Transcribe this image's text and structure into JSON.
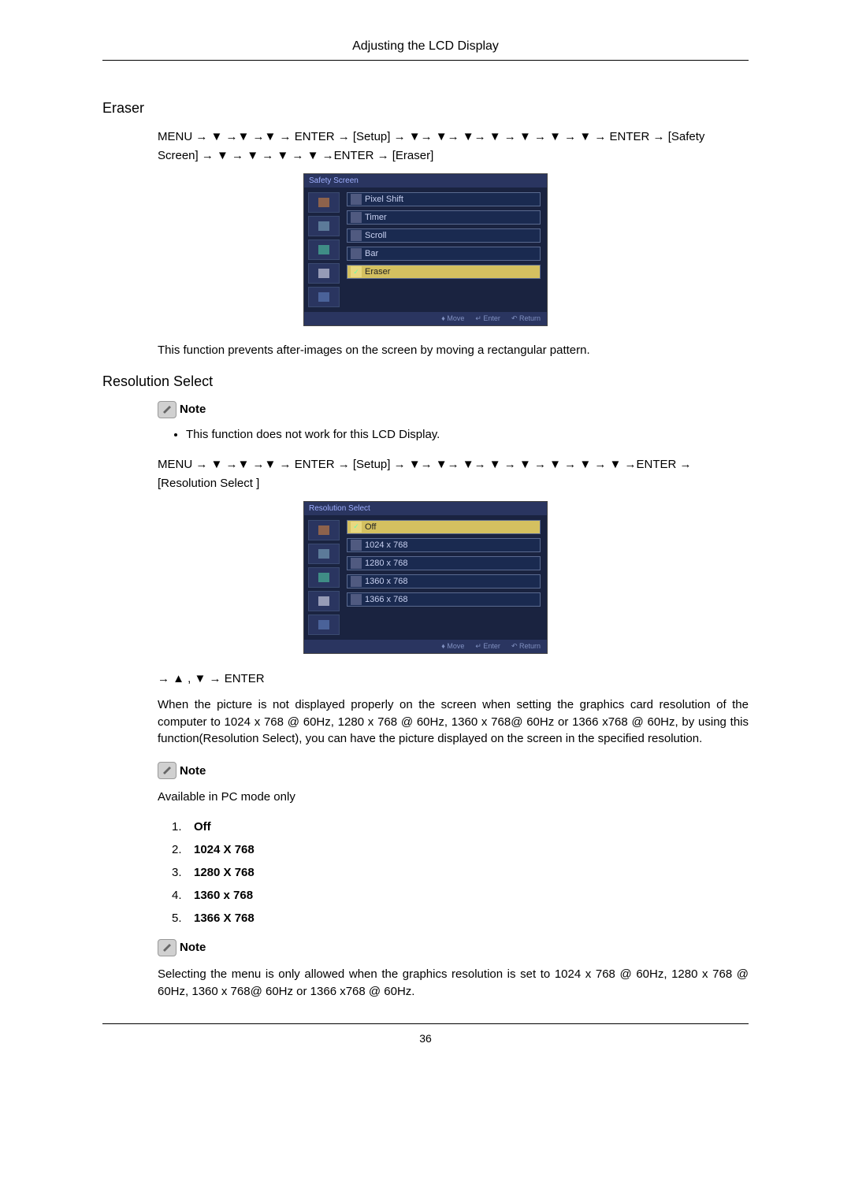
{
  "header": {
    "title": "Adjusting the LCD Display"
  },
  "sections": {
    "eraser": {
      "title": "Eraser",
      "navpath": "MENU → ▼ →▼ →▼ → ENTER → [Setup] → ▼→ ▼→ ▼→ ▼ → ▼ → ▼ → ▼ → ENTER → [Safety Screen] → ▼ → ▼ → ▼ → ▼ →ENTER → [Eraser]",
      "body": "This function prevents after-images on the screen by moving a rectangular pattern."
    },
    "resolution": {
      "title": "Resolution Select",
      "note1": "Note",
      "bullet": "This function does not work for this LCD Display.",
      "navpath": "MENU → ▼ →▼ →▼ → ENTER → [Setup] → ▼→ ▼→ ▼→ ▼ → ▼ → ▼ → ▼ → ▼ →ENTER → [Resolution Select ]",
      "navpath2": "→ ▲ , ▼ → ENTER",
      "body": "When the picture is not displayed properly on the screen when setting the graphics card resolution of the computer to 1024 x 768 @ 60Hz, 1280 x 768 @ 60Hz, 1360 x 768@ 60Hz or 1366 x768 @ 60Hz, by using this function(Resolution Select), you can have the picture displayed on the screen in the specified resolution.",
      "note2": "Note",
      "available": "Available in PC mode only",
      "list": [
        "Off",
        "1024 X 768",
        "1280 X 768",
        "1360 x 768",
        "1366 X 768"
      ],
      "note3": "Note",
      "body2": "Selecting the menu is only allowed when the graphics resolution is set to 1024 x 768 @ 60Hz, 1280 x 768 @ 60Hz, 1360 x 768@ 60Hz or 1366 x768 @ 60Hz."
    }
  },
  "osd1": {
    "title": "Safety Screen",
    "items": [
      "Pixel Shift",
      "Timer",
      "Scroll",
      "Bar",
      "Eraser"
    ],
    "activeIndex": 4,
    "sidebar_colors": [
      "#d08040",
      "#7fa8c0",
      "#4fc8a0",
      "#e0e0f0",
      "#6080c0"
    ],
    "footer": {
      "move": "♦ Move",
      "enter": "↵ Enter",
      "return": "↶ Return"
    }
  },
  "osd2": {
    "title": "Resolution Select",
    "items": [
      "Off",
      "1024 x 768",
      "1280 x 768",
      "1360 x 768",
      "1366 x 768"
    ],
    "activeIndex": 0,
    "sidebar_colors": [
      "#d08040",
      "#7fa8c0",
      "#4fc8a0",
      "#e0e0f0",
      "#6080c0"
    ],
    "footer": {
      "move": "♦ Move",
      "enter": "↵ Enter",
      "return": "↶ Return"
    }
  },
  "footer": {
    "page": "36"
  }
}
